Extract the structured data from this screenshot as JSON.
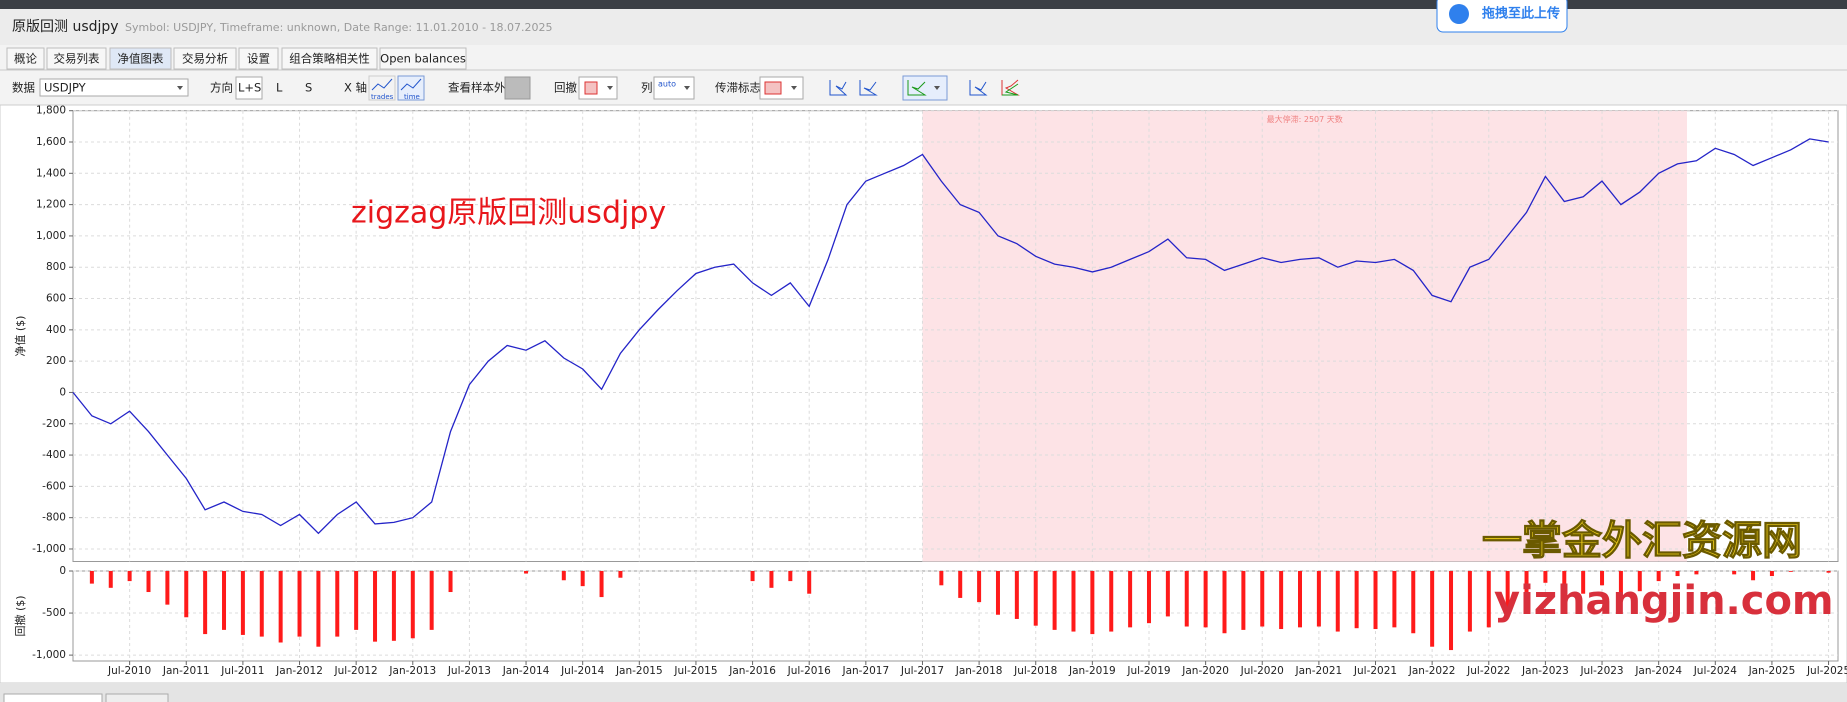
{
  "header": {
    "title": "原版回测 usdjpy",
    "subtitle": "Symbol: USDJPY, Timeframe: unknown, Date Range: 11.01.2010 - 18.07.2025",
    "upload": "拖拽至此上传"
  },
  "tabs": [
    "概论",
    "交易列表",
    "净值图表",
    "交易分析",
    "设置",
    "组合策略相关性",
    "Open balances"
  ],
  "toolbar": {
    "data_label": "数据",
    "symbol": "USDJPY",
    "direction_label": "方向",
    "directions": [
      "L+S",
      "L",
      "S"
    ],
    "x_axis_label": "X 轴",
    "x_modes": [
      "trades",
      "time"
    ],
    "out_of_sample": "查看样本外",
    "drawdown_label": "回撤",
    "columns_label": "列",
    "columns_mode": "auto",
    "stagnation_label": "传滞标志"
  },
  "watermarks": [
    "一掌金外汇资源网",
    "yizhangjin.com"
  ],
  "chart_data": [
    {
      "type": "line",
      "y_label": "净值 ($)",
      "color": "#2424c8",
      "grid": true,
      "annotation": "zigzag原版回测usdjpy",
      "shade": {
        "from": "Jul-2017",
        "to": "Apr-2024",
        "label": "最大停滞: 2507 天数"
      },
      "xlim": [
        "Jan-2010",
        "Aug-2025"
      ],
      "ylim": [
        -1080,
        1800
      ],
      "yticks": [
        {
          "value": -1000,
          "label": "-1,000"
        },
        -800,
        -600,
        -400,
        -200,
        0,
        200,
        400,
        600,
        800,
        {
          "value": 1000,
          "label": "1,000"
        },
        {
          "value": 1200,
          "label": "1,200"
        },
        {
          "value": 1400,
          "label": "1,400"
        },
        {
          "value": 1600,
          "label": "1,600"
        },
        {
          "value": 1800,
          "label": "1,800"
        }
      ],
      "x": [
        "Jan-2010",
        "Mar-2010",
        "May-2010",
        "Jul-2010",
        "Sep-2010",
        "Nov-2010",
        "Jan-2011",
        "Mar-2011",
        "May-2011",
        "Jul-2011",
        "Sep-2011",
        "Nov-2011",
        "Jan-2012",
        "Mar-2012",
        "May-2012",
        "Jul-2012",
        "Sep-2012",
        "Nov-2012",
        "Jan-2013",
        "Mar-2013",
        "May-2013",
        "Jul-2013",
        "Sep-2013",
        "Nov-2013",
        "Jan-2014",
        "Mar-2014",
        "May-2014",
        "Jul-2014",
        "Sep-2014",
        "Nov-2014",
        "Jan-2015",
        "Mar-2015",
        "May-2015",
        "Jul-2015",
        "Sep-2015",
        "Nov-2015",
        "Jan-2016",
        "Mar-2016",
        "May-2016",
        "Jul-2016",
        "Sep-2016",
        "Nov-2016",
        "Jan-2017",
        "Mar-2017",
        "May-2017",
        "Jul-2017",
        "Sep-2017",
        "Nov-2017",
        "Jan-2018",
        "Mar-2018",
        "May-2018",
        "Jul-2018",
        "Sep-2018",
        "Nov-2018",
        "Jan-2019",
        "Mar-2019",
        "May-2019",
        "Jul-2019",
        "Sep-2019",
        "Nov-2019",
        "Jan-2020",
        "Mar-2020",
        "May-2020",
        "Jul-2020",
        "Sep-2020",
        "Nov-2020",
        "Jan-2021",
        "Mar-2021",
        "May-2021",
        "Jul-2021",
        "Sep-2021",
        "Nov-2021",
        "Jan-2022",
        "Mar-2022",
        "May-2022",
        "Jul-2022",
        "Sep-2022",
        "Nov-2022",
        "Jan-2023",
        "Mar-2023",
        "May-2023",
        "Jul-2023",
        "Sep-2023",
        "Nov-2023",
        "Jan-2024",
        "Mar-2024",
        "May-2024",
        "Jul-2024",
        "Sep-2024",
        "Nov-2024",
        "Jan-2025",
        "Mar-2025",
        "May-2025",
        "Jul-2025"
      ],
      "values": [
        0,
        -150,
        -200,
        -120,
        -250,
        -400,
        -550,
        -750,
        -700,
        -760,
        -780,
        -850,
        -780,
        -900,
        -780,
        -700,
        -840,
        -830,
        -800,
        -700,
        -250,
        50,
        200,
        300,
        270,
        330,
        220,
        150,
        20,
        250,
        400,
        530,
        650,
        760,
        800,
        820,
        700,
        620,
        700,
        550,
        850,
        1200,
        1350,
        1400,
        1450,
        1520,
        1350,
        1200,
        1150,
        1000,
        950,
        870,
        820,
        800,
        770,
        800,
        850,
        900,
        980,
        860,
        850,
        780,
        820,
        860,
        830,
        850,
        860,
        800,
        840,
        830,
        850,
        780,
        620,
        580,
        800,
        850,
        1000,
        1150,
        1380,
        1220,
        1250,
        1350,
        1200,
        1280,
        1400,
        1460,
        1480,
        1560,
        1520,
        1450,
        1500,
        1550,
        1620,
        1600
      ]
    },
    {
      "type": "bar",
      "y_label": "回撤 ($)",
      "color": "#ff1a1a",
      "grid": true,
      "xlim": [
        "Jan-2010",
        "Aug-2025"
      ],
      "ylim": [
        -1070,
        0
      ],
      "yticks": [
        {
          "value": -1000,
          "label": "-1,000"
        },
        -500,
        0
      ],
      "xticks": [
        "Jul-2010",
        "Jan-2011",
        "Jul-2011",
        "Jan-2012",
        "Jul-2012",
        "Jan-2013",
        "Jul-2013",
        "Jan-2014",
        "Jul-2014",
        "Jan-2015",
        "Jul-2015",
        "Jan-2016",
        "Jul-2016",
        "Jan-2017",
        "Jul-2017",
        "Jan-2018",
        "Jul-2018",
        "Jan-2019",
        "Jul-2019",
        "Jan-2020",
        "Jul-2020",
        "Jan-2021",
        "Jul-2021",
        "Jan-2022",
        "Jul-2022",
        "Jan-2023",
        "Jul-2023",
        "Jan-2024",
        "Jul-2024",
        "Jan-2025",
        "Jul-2025"
      ],
      "x": [
        "Jan-2010",
        "Mar-2010",
        "May-2010",
        "Jul-2010",
        "Sep-2010",
        "Nov-2010",
        "Jan-2011",
        "Mar-2011",
        "May-2011",
        "Jul-2011",
        "Sep-2011",
        "Nov-2011",
        "Jan-2012",
        "Mar-2012",
        "May-2012",
        "Jul-2012",
        "Sep-2012",
        "Nov-2012",
        "Jan-2013",
        "Mar-2013",
        "May-2013",
        "Jul-2013",
        "Sep-2013",
        "Nov-2013",
        "Jan-2014",
        "Mar-2014",
        "May-2014",
        "Jul-2014",
        "Sep-2014",
        "Nov-2014",
        "Jan-2015",
        "Mar-2015",
        "May-2015",
        "Jul-2015",
        "Sep-2015",
        "Nov-2015",
        "Jan-2016",
        "Mar-2016",
        "May-2016",
        "Jul-2016",
        "Sep-2016",
        "Nov-2016",
        "Jan-2017",
        "Mar-2017",
        "May-2017",
        "Jul-2017",
        "Sep-2017",
        "Nov-2017",
        "Jan-2018",
        "Mar-2018",
        "May-2018",
        "Jul-2018",
        "Sep-2018",
        "Nov-2018",
        "Jan-2019",
        "Mar-2019",
        "May-2019",
        "Jul-2019",
        "Sep-2019",
        "Nov-2019",
        "Jan-2020",
        "Mar-2020",
        "May-2020",
        "Jul-2020",
        "Sep-2020",
        "Nov-2020",
        "Jan-2021",
        "Mar-2021",
        "May-2021",
        "Jul-2021",
        "Sep-2021",
        "Nov-2021",
        "Jan-2022",
        "Mar-2022",
        "May-2022",
        "Jul-2022",
        "Sep-2022",
        "Nov-2022",
        "Jan-2023",
        "Mar-2023",
        "May-2023",
        "Jul-2023",
        "Sep-2023",
        "Nov-2023",
        "Jan-2024",
        "Mar-2024",
        "May-2024",
        "Jul-2024",
        "Sep-2024",
        "Nov-2024",
        "Jan-2025",
        "Mar-2025",
        "May-2025",
        "Jul-2025"
      ],
      "values": [
        0,
        -150,
        -200,
        -120,
        -250,
        -400,
        -550,
        -750,
        -700,
        -760,
        -780,
        -850,
        -780,
        -900,
        -780,
        -700,
        -840,
        -830,
        -800,
        -700,
        -250,
        0,
        0,
        0,
        -30,
        0,
        -110,
        -180,
        -310,
        -80,
        0,
        0,
        0,
        0,
        0,
        0,
        -120,
        -200,
        -120,
        -270,
        0,
        0,
        0,
        0,
        0,
        0,
        -170,
        -320,
        -370,
        -520,
        -570,
        -650,
        -700,
        -720,
        -750,
        -720,
        -670,
        -620,
        -540,
        -660,
        -670,
        -740,
        -700,
        -660,
        -690,
        -670,
        -660,
        -720,
        -680,
        -690,
        -670,
        -740,
        -900,
        -940,
        -720,
        -670,
        -520,
        -370,
        -140,
        -300,
        -270,
        -170,
        -320,
        -240,
        -120,
        -60,
        -40,
        0,
        -40,
        -110,
        -60,
        -10,
        0,
        -20
      ]
    }
  ]
}
